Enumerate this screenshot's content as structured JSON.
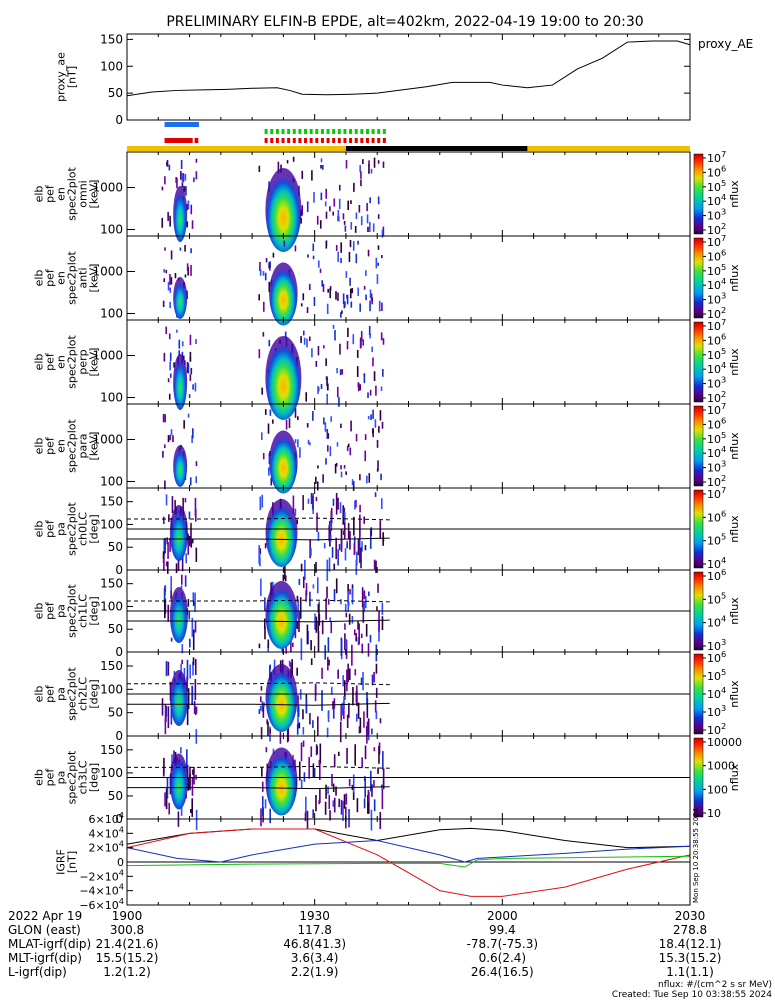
{
  "title": "PRELIMINARY ELFIN-B EPDE, alt=402km, 2022-04-19 19:00 to 20:30",
  "chart_data": [
    {
      "type": "line",
      "name": "proxy_ae",
      "ylabel_lines": [
        "proxy_ae",
        "[nT]"
      ],
      "legend": "proxy_AE",
      "ylim": [
        0,
        160
      ],
      "yticks": [
        "0",
        "50",
        "100",
        "150"
      ],
      "x_minutes": [
        0,
        4,
        8,
        12,
        16,
        20,
        24,
        26,
        28,
        32,
        36,
        40,
        44,
        48,
        52,
        56,
        58,
        60,
        64,
        68,
        72,
        76,
        80,
        84,
        88,
        90
      ],
      "values": [
        45,
        52,
        55,
        56,
        57,
        59,
        60,
        55,
        48,
        47,
        48,
        50,
        56,
        62,
        70,
        70,
        70,
        65,
        60,
        65,
        95,
        115,
        145,
        147,
        147,
        140
      ]
    },
    {
      "type": "heatmap",
      "name": "omni",
      "ylabel_lines": [
        "elb",
        "pef",
        "en",
        "spec2plot",
        "omni",
        "[keV]"
      ],
      "yscale": "log",
      "yticks": [
        "100",
        "1000"
      ],
      "zunit": "nflux",
      "zticks": [
        "10^2",
        "10^3",
        "10^4",
        "10^5",
        "10^6",
        "10^7"
      ]
    },
    {
      "type": "heatmap",
      "name": "anti",
      "ylabel_lines": [
        "elb",
        "pef",
        "en",
        "spec2plot",
        "anti",
        "[keV]"
      ],
      "yscale": "log",
      "yticks": [
        "100",
        "1000"
      ],
      "zunit": "nflux",
      "zticks": [
        "10^2",
        "10^3",
        "10^4",
        "10^5",
        "10^6",
        "10^7"
      ]
    },
    {
      "type": "heatmap",
      "name": "perp",
      "ylabel_lines": [
        "elb",
        "pef",
        "en",
        "spec2plot",
        "perp",
        "[keV]"
      ],
      "yscale": "log",
      "yticks": [
        "100",
        "1000"
      ],
      "zunit": "nflux",
      "zticks": [
        "10^2",
        "10^3",
        "10^4",
        "10^5",
        "10^6",
        "10^7"
      ]
    },
    {
      "type": "heatmap",
      "name": "para",
      "ylabel_lines": [
        "elb",
        "pef",
        "en",
        "spec2plot",
        "para",
        "[keV]"
      ],
      "yscale": "log",
      "yticks": [
        "100",
        "1000"
      ],
      "zunit": "nflux",
      "zticks": [
        "10^2",
        "10^3",
        "10^4",
        "10^5",
        "10^6",
        "10^7"
      ]
    },
    {
      "type": "heatmap",
      "name": "ch0LC",
      "ylabel_lines": [
        "elb",
        "pef",
        "pa",
        "spec2plot",
        "ch0LC",
        "[deg]"
      ],
      "ylim": [
        0,
        180
      ],
      "yticks": [
        "0",
        "50",
        "100",
        "150"
      ],
      "zunit": "nflux",
      "zticks": [
        "10^4",
        "10^5",
        "10^6",
        "10^7"
      ]
    },
    {
      "type": "heatmap",
      "name": "ch1LC",
      "ylabel_lines": [
        "elb",
        "pef",
        "pa",
        "spec2plot",
        "ch1LC",
        "[deg]"
      ],
      "ylim": [
        0,
        180
      ],
      "yticks": [
        "0",
        "50",
        "100",
        "150"
      ],
      "zunit": "nflux",
      "zticks": [
        "10^3",
        "10^4",
        "10^5",
        "10^6"
      ]
    },
    {
      "type": "heatmap",
      "name": "ch2LC",
      "ylabel_lines": [
        "elb",
        "pef",
        "pa",
        "spec2plot",
        "ch2LC",
        "[deg]"
      ],
      "ylim": [
        0,
        180
      ],
      "yticks": [
        "0",
        "50",
        "100",
        "150"
      ],
      "zunit": "nflux",
      "zticks": [
        "10^2",
        "10^3",
        "10^4",
        "10^5",
        "10^6"
      ]
    },
    {
      "type": "heatmap",
      "name": "ch3LC",
      "ylabel_lines": [
        "elb",
        "pef",
        "pa",
        "spec2plot",
        "ch3LC",
        "[deg]"
      ],
      "ylim": [
        0,
        180
      ],
      "yticks": [
        "0",
        "50",
        "100",
        "150"
      ],
      "zunit": "nflux",
      "zticks": [
        "10",
        "100",
        "1000",
        "10000"
      ]
    },
    {
      "type": "line",
      "name": "IGRF",
      "ylabel_lines": [
        "IGRF",
        "[nT]"
      ],
      "ylim": [
        -60000,
        60000
      ],
      "yticks": [
        "−6×10^4",
        "−4×10^4",
        "−2×10^4",
        "0",
        "2×10^4",
        "4×10^4",
        "6×10^4"
      ],
      "side_text": "Mon Sep 10 20:38:55 2024",
      "series": [
        {
          "color": "#000000",
          "x_minutes": [
            0,
            10,
            20,
            30,
            40,
            50,
            55,
            60,
            70,
            80,
            90
          ],
          "values": [
            25000,
            40000,
            46000,
            46000,
            30000,
            45000,
            47000,
            44000,
            30000,
            20000,
            22000
          ]
        },
        {
          "color": "#1030c0",
          "x_minutes": [
            0,
            8,
            15,
            20,
            30,
            40,
            50,
            54,
            56,
            60,
            70,
            80,
            90
          ],
          "values": [
            20000,
            5000,
            0,
            10000,
            25000,
            30000,
            10000,
            0,
            5000,
            7000,
            12000,
            18000,
            22000
          ]
        },
        {
          "color": "#e01010",
          "x_minutes": [
            0,
            10,
            20,
            30,
            40,
            50,
            55,
            60,
            70,
            80,
            90
          ],
          "values": [
            20000,
            40000,
            46000,
            46000,
            10000,
            -40000,
            -48000,
            -48000,
            -35000,
            -10000,
            10000
          ]
        },
        {
          "color": "#10c010",
          "x_minutes": [
            0,
            20,
            40,
            50,
            54,
            56,
            60,
            70,
            80,
            90
          ],
          "values": [
            -5000,
            -3000,
            -2000,
            -2000,
            -7000,
            3000,
            5000,
            6000,
            7000,
            8000
          ]
        }
      ]
    }
  ],
  "bars": {
    "blue_legend_color": "#1a6ff0",
    "red_legend_color": "#e00000",
    "green_legend_color": "#00d000"
  },
  "ticks_footer": {
    "rows": [
      {
        "label": "2022 Apr 19",
        "values": [
          "1900",
          "1930",
          "2000",
          "2030"
        ]
      },
      {
        "label": "GLON (east)",
        "values": [
          "300.8",
          "117.8",
          "99.4",
          "278.8"
        ]
      },
      {
        "label": "MLAT-igrf(dip)",
        "values": [
          "21.4(21.6)",
          "46.8(41.3)",
          "-78.7(-75.3)",
          "18.4(12.1)"
        ]
      },
      {
        "label": "MLT-igrf(dip)",
        "values": [
          "15.5(15.2)",
          "3.6(3.4)",
          "0.6(2.4)",
          "15.3(15.2)"
        ]
      },
      {
        "label": "L-igrf(dip)",
        "values": [
          "1.2(1.2)",
          "2.2(1.9)",
          "26.4(16.5)",
          "1.1(1.1)"
        ]
      }
    ]
  },
  "footer": {
    "units": "nflux: #/(cm^2 s sr MeV)",
    "created": "Created: Tue Sep 10 03:38:55 2024"
  }
}
